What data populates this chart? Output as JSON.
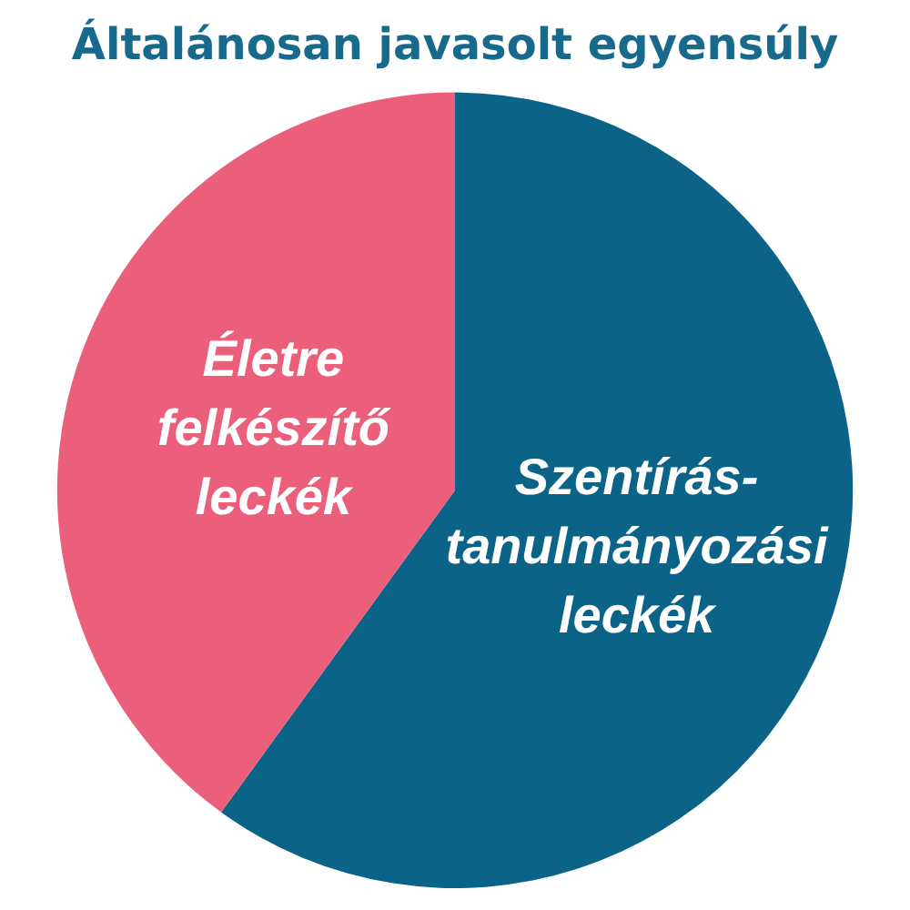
{
  "chart_data": {
    "type": "pie",
    "title": "Általánosan javasolt egyensúly",
    "categories": [
      "Szentírás-tanulmányozási leckék",
      "Életre felkészítő leckék"
    ],
    "values": [
      60,
      40
    ],
    "colors": [
      "#0b6487",
      "#ec5f7b"
    ]
  }
}
